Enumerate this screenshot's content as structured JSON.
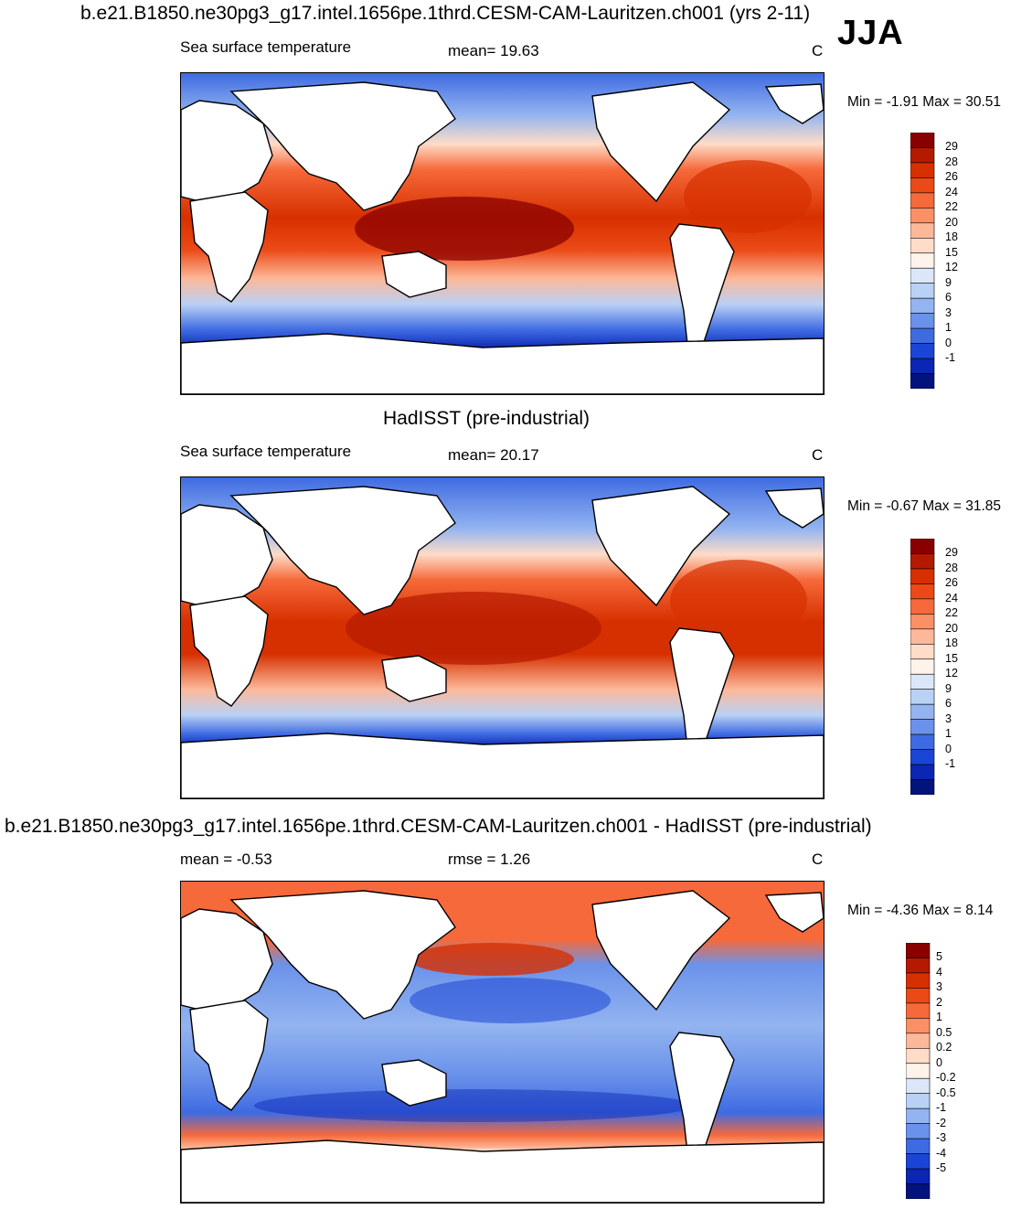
{
  "figure": {
    "title": "b.e21.B1850.ne30pg3_g17.intel.1656pe.1thrd.CESM-CAM-Lauritzen.ch001 (yrs 2-11)",
    "season": "JJA"
  },
  "panels": [
    {
      "id": "model",
      "variable": "Sea surface temperature",
      "stat_text": "mean=  19.63",
      "units": "C",
      "range_text": "Min =  -1.91 Max =  30.51",
      "colorbar": {
        "labels": [
          "29",
          "28",
          "26",
          "24",
          "22",
          "20",
          "18",
          "15",
          "12",
          "9",
          "6",
          "3",
          "1",
          "0",
          "-1"
        ],
        "colors": [
          "#8a0000",
          "#b51a00",
          "#d73000",
          "#eb4a16",
          "#f6693a",
          "#fb8f66",
          "#fdb899",
          "#fedcc8",
          "#fdf3eb",
          "#dbe7f8",
          "#b9d1f5",
          "#93b4f0",
          "#6a92ea",
          "#3f6be2",
          "#1b45d6",
          "#0a26b3",
          "#03137e"
        ]
      }
    },
    {
      "id": "obs",
      "header": "HadISST (pre-industrial)",
      "variable": "Sea surface temperature",
      "stat_text": "mean=  20.17",
      "units": "C",
      "range_text": "Min =  -0.67 Max =  31.85",
      "colorbar": {
        "labels": [
          "29",
          "28",
          "26",
          "24",
          "22",
          "20",
          "18",
          "15",
          "12",
          "9",
          "6",
          "3",
          "1",
          "0",
          "-1"
        ],
        "colors": [
          "#8a0000",
          "#b51a00",
          "#d73000",
          "#eb4a16",
          "#f6693a",
          "#fb8f66",
          "#fdb899",
          "#fedcc8",
          "#fdf3eb",
          "#dbe7f8",
          "#b9d1f5",
          "#93b4f0",
          "#6a92ea",
          "#3f6be2",
          "#1b45d6",
          "#0a26b3",
          "#03137e"
        ]
      }
    },
    {
      "id": "diff",
      "header": "b.e21.B1850.ne30pg3_g17.intel.1656pe.1thrd.CESM-CAM-Lauritzen.ch001 - HadISST (pre-industrial)",
      "stat_text": "mean =  -0.53",
      "stat2_text": "rmse =   1.26",
      "units": "C",
      "range_text": "Min =  -4.36 Max =   8.14",
      "colorbar": {
        "labels": [
          "5",
          "4",
          "3",
          "2",
          "1",
          "0.5",
          "0.2",
          "0",
          "-0.2",
          "-0.5",
          "-1",
          "-2",
          "-3",
          "-4",
          "-5"
        ],
        "colors": [
          "#8a0000",
          "#b51a00",
          "#d73000",
          "#eb4a16",
          "#f6693a",
          "#fb8f66",
          "#fdb899",
          "#fedcc8",
          "#fdf3eb",
          "#dbe7f8",
          "#b9d1f5",
          "#93b4f0",
          "#6a92ea",
          "#3f6be2",
          "#1b45d6",
          "#0a26b3",
          "#03137e"
        ]
      }
    }
  ]
}
